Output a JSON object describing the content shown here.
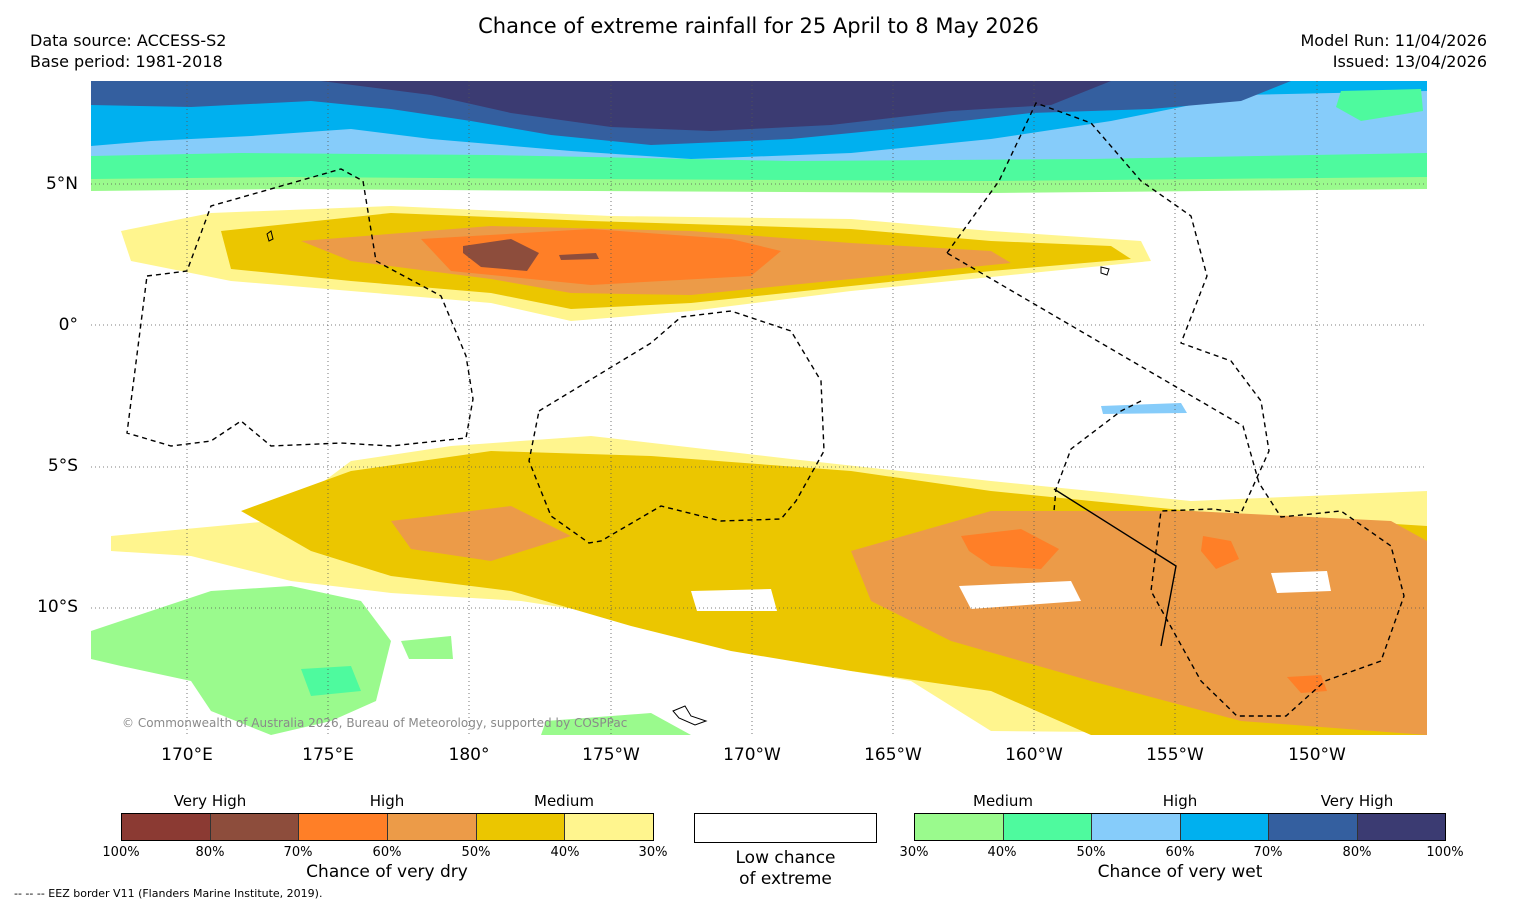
{
  "title": "Chance of extreme rainfall for 25 April to 8 May 2026",
  "meta": {
    "data_source": "Data source: ACCESS-S2",
    "base_period": "Base period: 1981-2018",
    "model_run": "Model Run: 11/04/2026",
    "issued": "Issued: 13/04/2026"
  },
  "map": {
    "lat_labels": [
      "5°N",
      "0°",
      "5°S",
      "10°S"
    ],
    "lon_labels": [
      "170°E",
      "175°E",
      "180°",
      "175°W",
      "170°W",
      "165°W",
      "160°W",
      "155°W",
      "150°W"
    ],
    "copyright": "© Commonwealth of Australia 2026, Bureau of Meteorology, supported by COSPPac"
  },
  "legend": {
    "dry": {
      "categories": [
        "Very High",
        "High",
        "Medium"
      ],
      "ticks": [
        "100%",
        "80%",
        "70%",
        "60%",
        "50%",
        "40%",
        "30%"
      ],
      "colors": [
        "#8b3a33",
        "#8d4d3c",
        "#ff7f27",
        "#ec9b48",
        "#ebc600",
        "#fff58e"
      ],
      "title": "Chance of very dry"
    },
    "low": {
      "line1": "Low chance",
      "line2": "of extreme"
    },
    "wet": {
      "categories": [
        "Medium",
        "High",
        "Very High"
      ],
      "ticks": [
        "30%",
        "40%",
        "50%",
        "60%",
        "70%",
        "80%",
        "100%"
      ],
      "colors": [
        "#9afa8d",
        "#4efa9e",
        "#86ccfa",
        "#00b0ef",
        "#345f9f",
        "#3b3b72"
      ],
      "title": "Chance of very wet"
    }
  },
  "footnote": "--  --  -- EEZ border V11 (Flanders Marine Institute, 2019)."
}
